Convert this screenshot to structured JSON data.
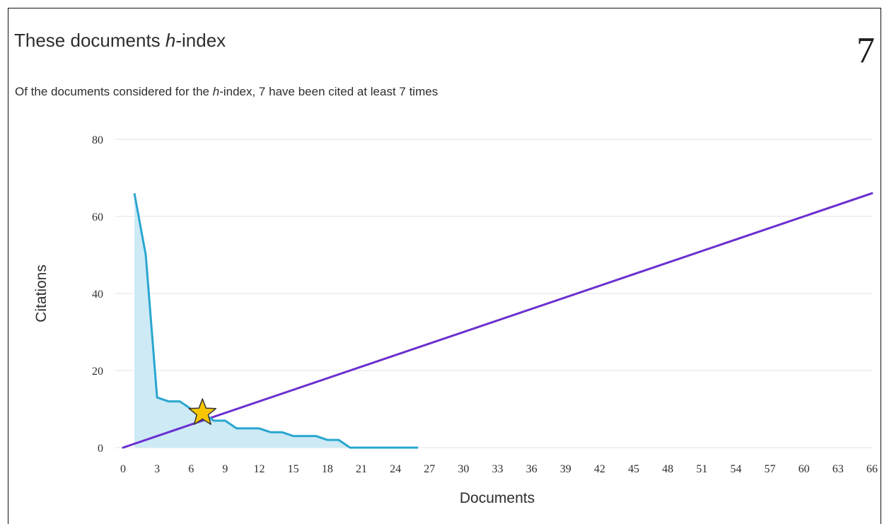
{
  "header": {
    "title_prefix": "These documents ",
    "title_italic": "h",
    "title_suffix": "-index",
    "h_index_value": "7",
    "subtitle_prefix": "Of the documents considered for the ",
    "subtitle_italic": "h",
    "subtitle_suffix": "-index, 7 have been cited at least 7 times"
  },
  "colors": {
    "citations_line": "#2aa6d0",
    "citations_fill": "#cdeaf5",
    "h_index_line": "#6b2fcf",
    "star_fill": "#f7c600",
    "star_stroke": "#333333",
    "grid": "#e3e3e3"
  },
  "chart_data": {
    "type": "line",
    "xlabel": "Documents",
    "ylabel": "Citations",
    "xlim": [
      0,
      66
    ],
    "ylim": [
      0,
      80
    ],
    "x_ticks": [
      0,
      3,
      6,
      9,
      12,
      15,
      18,
      21,
      24,
      27,
      30,
      33,
      36,
      39,
      42,
      45,
      48,
      51,
      54,
      57,
      60,
      63,
      66
    ],
    "y_ticks": [
      0,
      20,
      40,
      60,
      80
    ],
    "grid": "horizontal",
    "legend": "none",
    "series": [
      {
        "role": "citations_per_document",
        "x": [
          1,
          2,
          3,
          4,
          5,
          6,
          7,
          8,
          9,
          10,
          11,
          12,
          13,
          14,
          15,
          16,
          17,
          18,
          19,
          20,
          21,
          22,
          23,
          24,
          25,
          26
        ],
        "y": [
          66,
          50,
          13,
          12,
          12,
          10,
          9,
          7,
          7,
          5,
          5,
          5,
          4,
          4,
          3,
          3,
          3,
          2,
          2,
          0,
          0,
          0,
          0,
          0,
          0,
          0
        ],
        "filled": true
      },
      {
        "role": "h_index_reference_line",
        "x": [
          0,
          66
        ],
        "y": [
          0,
          66
        ],
        "filled": false
      }
    ],
    "marker": {
      "shape": "star",
      "x": 7,
      "y": 9
    }
  }
}
